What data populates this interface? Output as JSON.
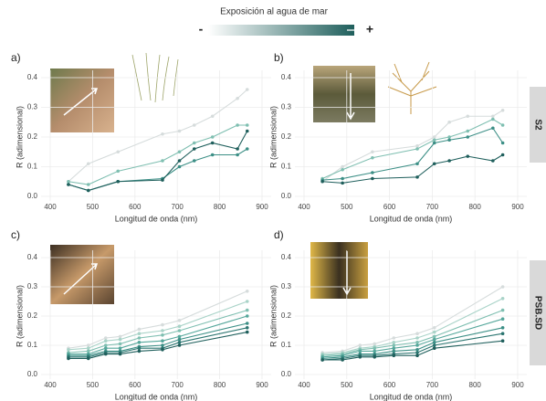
{
  "header": {
    "title": "Exposición al agua de mar",
    "low": "-",
    "high": "+"
  },
  "chart_data": [
    {
      "type": "line",
      "label": "a)",
      "xlabel": "Longitud de onda (nm)",
      "ylabel": "R (adimensional)",
      "x": [
        443,
        490,
        560,
        665,
        705,
        740,
        783,
        842,
        865
      ],
      "xlim": [
        400,
        900
      ],
      "xticks": [
        400,
        500,
        600,
        700,
        800,
        900
      ],
      "ylim": [
        0,
        0.4
      ],
      "yticks": [
        {
          "value": 0,
          "label": "0.0"
        },
        0.1,
        0.2,
        0.3,
        0.4
      ],
      "grid": true,
      "series": [
        {
          "color": "#d6dcdc",
          "values": [
            0.05,
            0.11,
            0.15,
            0.21,
            0.22,
            0.24,
            0.27,
            0.33,
            0.36
          ]
        },
        {
          "color": "#7fbfb1",
          "values": [
            0.05,
            0.04,
            0.085,
            0.12,
            0.15,
            0.18,
            0.2,
            0.24,
            0.24
          ]
        },
        {
          "color": "#3c8f86",
          "values": [
            0.04,
            0.02,
            0.05,
            0.06,
            0.1,
            0.12,
            0.14,
            0.14,
            0.16
          ]
        },
        {
          "color": "#1f5f5c",
          "values": [
            0.04,
            0.02,
            0.05,
            0.055,
            0.12,
            0.16,
            0.18,
            0.16,
            0.22
          ]
        }
      ]
    },
    {
      "type": "line",
      "label": "b)",
      "xlabel": "Longitud de onda (nm)",
      "ylabel": "R (adimensional)",
      "strip": "S2",
      "x": [
        443,
        490,
        560,
        665,
        705,
        740,
        783,
        842,
        865
      ],
      "xlim": [
        400,
        900
      ],
      "xticks": [
        400,
        500,
        600,
        700,
        800,
        900
      ],
      "ylim": [
        0,
        0.4
      ],
      "yticks": [
        {
          "value": 0,
          "label": "0.0"
        },
        0.1,
        0.2,
        0.3,
        0.4
      ],
      "grid": true,
      "series": [
        {
          "color": "#d6dcdc",
          "values": [
            0.05,
            0.1,
            0.15,
            0.17,
            0.2,
            0.25,
            0.27,
            0.27,
            0.29
          ]
        },
        {
          "color": "#7fbfb1",
          "values": [
            0.06,
            0.09,
            0.13,
            0.16,
            0.19,
            0.2,
            0.22,
            0.26,
            0.24
          ]
        },
        {
          "color": "#3c8f86",
          "values": [
            0.055,
            0.06,
            0.08,
            0.11,
            0.18,
            0.19,
            0.2,
            0.23,
            0.18
          ]
        },
        {
          "color": "#1f5f5c",
          "values": [
            0.05,
            0.045,
            0.06,
            0.065,
            0.11,
            0.12,
            0.135,
            0.12,
            0.14
          ]
        }
      ]
    },
    {
      "type": "line",
      "label": "c)",
      "xlabel": "Longitud de onda (nm)",
      "ylabel": "R (adimensional)",
      "x": [
        443,
        490,
        531,
        565,
        610,
        665,
        705,
        865
      ],
      "xlim": [
        400,
        900
      ],
      "xticks": [
        400,
        500,
        600,
        700,
        800,
        900
      ],
      "ylim": [
        0,
        0.4
      ],
      "yticks": [
        {
          "value": 0,
          "label": "0.0"
        },
        0.1,
        0.2,
        0.3,
        0.4
      ],
      "grid": true,
      "series": [
        {
          "color": "#d6dcdc",
          "values": [
            0.09,
            0.1,
            0.125,
            0.13,
            0.155,
            0.17,
            0.185,
            0.285
          ]
        },
        {
          "color": "#a9d3c8",
          "values": [
            0.085,
            0.09,
            0.115,
            0.12,
            0.14,
            0.15,
            0.165,
            0.25
          ]
        },
        {
          "color": "#7fbfb1",
          "values": [
            0.075,
            0.08,
            0.1,
            0.105,
            0.125,
            0.135,
            0.15,
            0.22
          ]
        },
        {
          "color": "#55a79b",
          "values": [
            0.07,
            0.07,
            0.09,
            0.09,
            0.11,
            0.115,
            0.13,
            0.2
          ]
        },
        {
          "color": "#3c8f86",
          "values": [
            0.065,
            0.065,
            0.08,
            0.08,
            0.095,
            0.1,
            0.12,
            0.175
          ]
        },
        {
          "color": "#2b7570",
          "values": [
            0.06,
            0.06,
            0.075,
            0.075,
            0.09,
            0.09,
            0.11,
            0.16
          ]
        },
        {
          "color": "#1f5f5c",
          "values": [
            0.055,
            0.055,
            0.07,
            0.07,
            0.08,
            0.085,
            0.1,
            0.145
          ]
        }
      ]
    },
    {
      "type": "line",
      "label": "d)",
      "xlabel": "Longitud de onda (nm)",
      "ylabel": "R (adimensional)",
      "strip": "PSB.SD",
      "x": [
        443,
        490,
        531,
        565,
        610,
        665,
        705,
        865
      ],
      "xlim": [
        400,
        900
      ],
      "xticks": [
        400,
        500,
        600,
        700,
        800,
        900
      ],
      "ylim": [
        0,
        0.4
      ],
      "yticks": [
        {
          "value": 0,
          "label": "0.0"
        },
        0.1,
        0.2,
        0.3,
        0.4
      ],
      "grid": true,
      "series": [
        {
          "color": "#d6dcdc",
          "values": [
            0.075,
            0.08,
            0.1,
            0.105,
            0.125,
            0.14,
            0.16,
            0.3
          ]
        },
        {
          "color": "#a9d3c8",
          "values": [
            0.07,
            0.075,
            0.09,
            0.095,
            0.11,
            0.125,
            0.145,
            0.26
          ]
        },
        {
          "color": "#7fbfb1",
          "values": [
            0.065,
            0.07,
            0.085,
            0.09,
            0.1,
            0.11,
            0.13,
            0.22
          ]
        },
        {
          "color": "#55a79b",
          "values": [
            0.06,
            0.065,
            0.08,
            0.08,
            0.09,
            0.1,
            0.12,
            0.19
          ]
        },
        {
          "color": "#3c8f86",
          "values": [
            0.055,
            0.06,
            0.07,
            0.07,
            0.08,
            0.085,
            0.11,
            0.16
          ]
        },
        {
          "color": "#2b7570",
          "values": [
            0.05,
            0.055,
            0.065,
            0.065,
            0.07,
            0.075,
            0.1,
            0.14
          ]
        },
        {
          "color": "#1f5f5c",
          "values": [
            0.05,
            0.05,
            0.06,
            0.06,
            0.065,
            0.065,
            0.09,
            0.115
          ]
        }
      ]
    }
  ]
}
